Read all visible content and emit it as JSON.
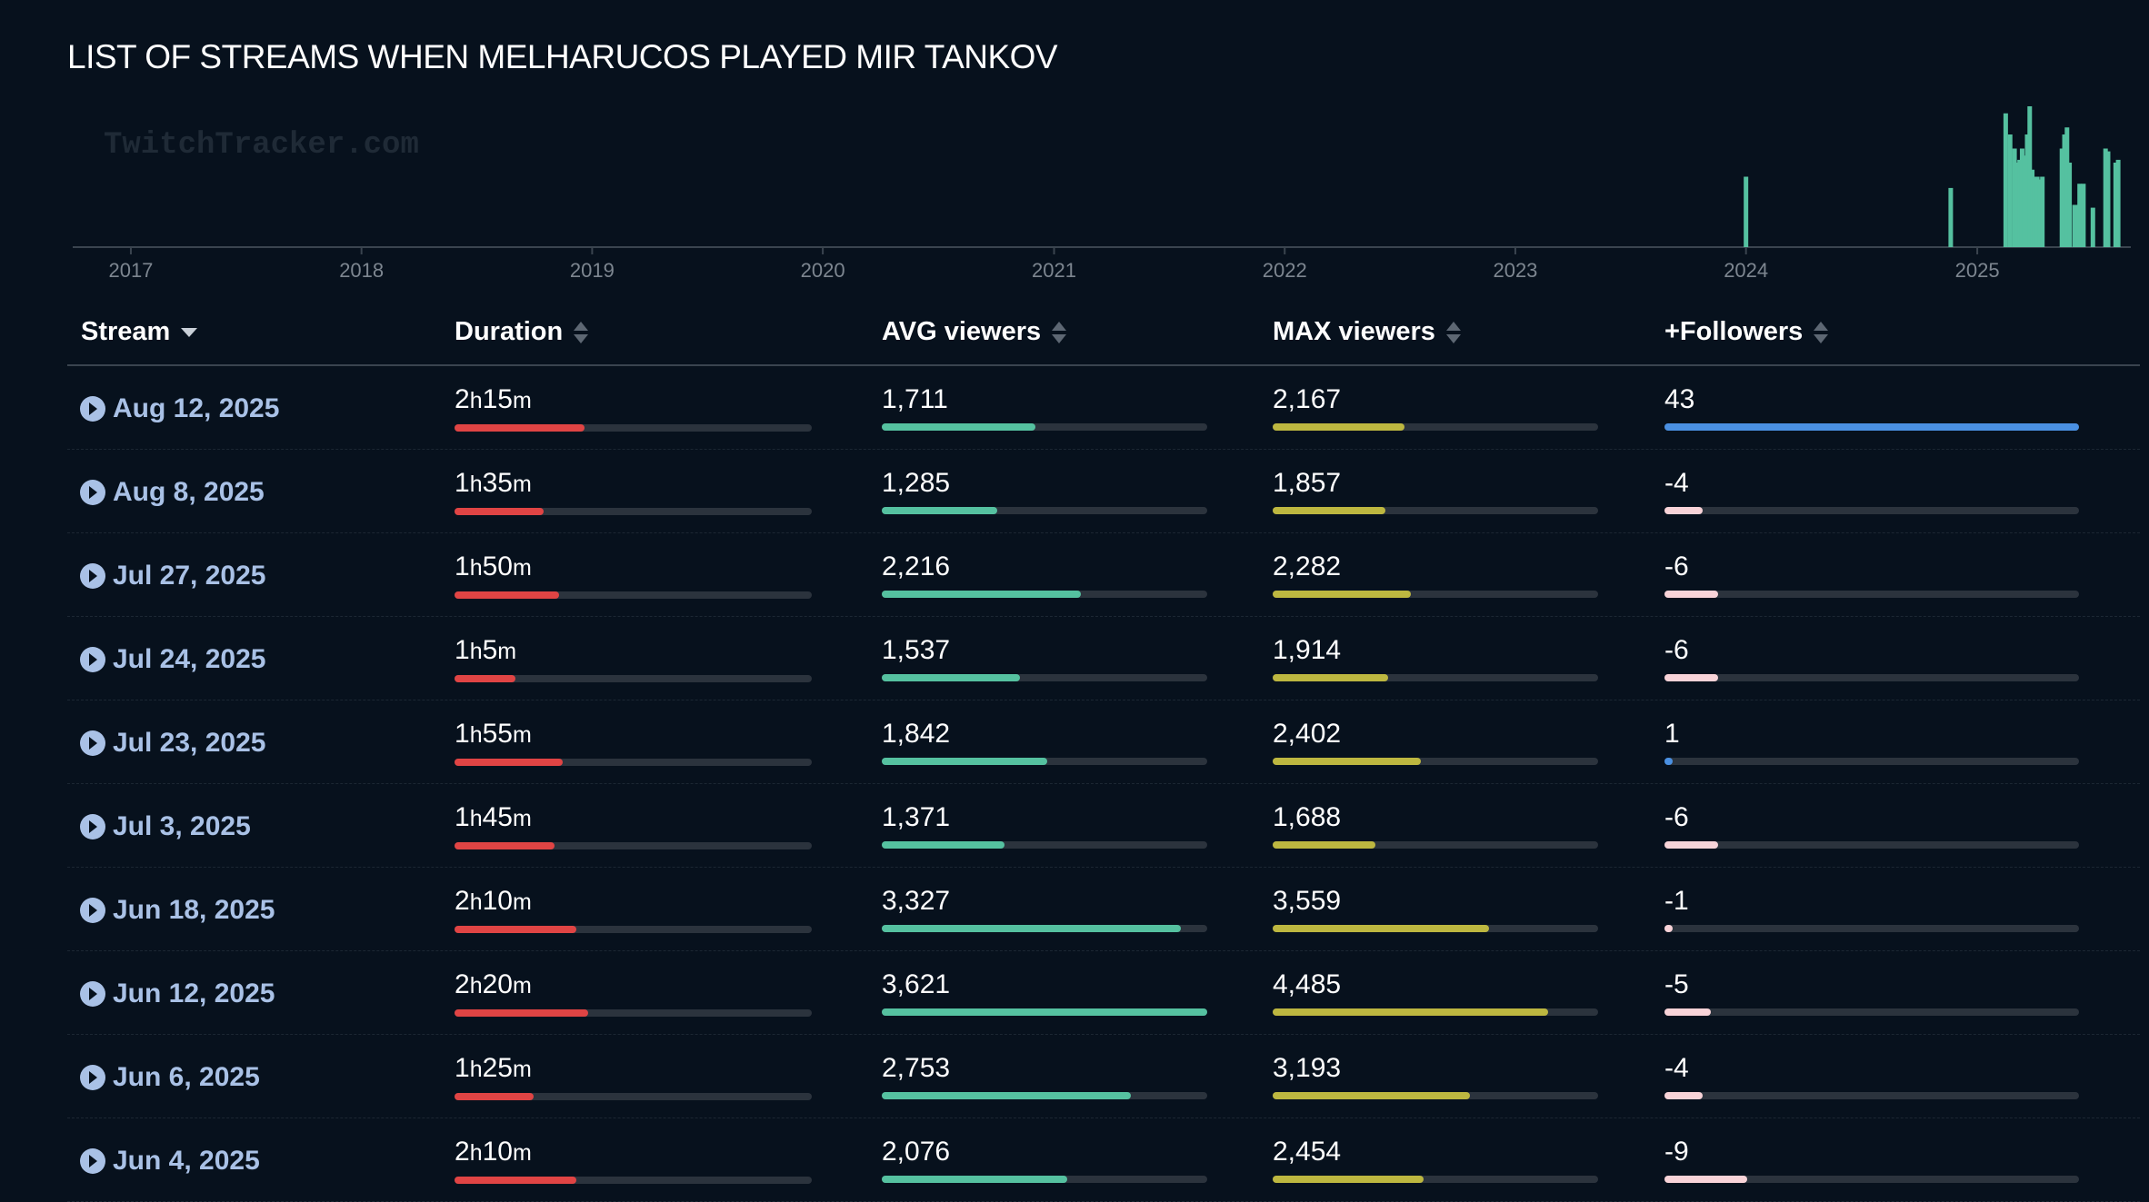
{
  "page": {
    "title": "LIST OF STREAMS WHEN MELHARUCOS PLAYED MIR TANKOV"
  },
  "timeline": {
    "watermark": "TwitchTracker.com",
    "years": [
      "2017",
      "2018",
      "2019",
      "2020",
      "2021",
      "2022",
      "2023",
      "2024",
      "2025"
    ],
    "bar_color": "#55c1a0",
    "axis_color": "#3a444f"
  },
  "chart_data": {
    "type": "bar",
    "xlabel": "",
    "ylabel": "",
    "x_axis_range": [
      "2016-10",
      "2025-09"
    ],
    "tick_labels": [
      "2017",
      "2018",
      "2019",
      "2020",
      "2021",
      "2022",
      "2023",
      "2024",
      "2025"
    ],
    "grid": false,
    "series": [
      {
        "x": [
          "2024-01-01",
          "2024-11-20",
          "2025-02-15",
          "2025-02-22",
          "2025-03-01",
          "2025-03-05",
          "2025-03-09",
          "2025-03-13",
          "2025-03-17",
          "2025-03-21",
          "2025-03-25",
          "2025-03-29",
          "2025-04-02",
          "2025-04-06",
          "2025-04-10",
          "2025-04-14",
          "2025-05-15",
          "2025-05-19",
          "2025-05-23",
          "2025-05-27",
          "2025-06-04",
          "2025-06-06",
          "2025-06-12",
          "2025-06-18",
          "2025-07-03",
          "2025-07-23",
          "2025-07-24",
          "2025-07-27",
          "2025-08-08",
          "2025-08-12"
        ],
        "values": [
          50,
          42,
          95,
          80,
          70,
          60,
          62,
          70,
          65,
          80,
          100,
          55,
          50,
          50,
          48,
          50,
          70,
          80,
          85,
          60,
          30,
          30,
          45,
          45,
          28,
          70,
          65,
          68,
          60,
          62
        ]
      }
    ]
  },
  "table": {
    "headers": {
      "stream": "Stream",
      "duration": "Duration",
      "avg": "AVG viewers",
      "max": "MAX viewers",
      "followers": "+Followers"
    },
    "colors": {
      "duration": "#e04444",
      "avg": "#55c1a0",
      "max": "#bdb740",
      "followers_positive": "#4a90e2",
      "followers_negative": "#f8d3d8",
      "track": "#2b333d",
      "link": "#a9c1e6"
    },
    "rows": [
      {
        "date": "Aug 12, 2025",
        "dur_h": "2",
        "dur_m": "15",
        "dur_frac": 0.364,
        "avg": "1,711",
        "avg_frac": 0.472,
        "max": "2,167",
        "max_frac": 0.405,
        "followers": "43",
        "fol_frac": 1.0,
        "fol_pos": true
      },
      {
        "date": "Aug 8, 2025",
        "dur_h": "1",
        "dur_m": "35",
        "dur_frac": 0.25,
        "avg": "1,285",
        "avg_frac": 0.355,
        "max": "1,857",
        "max_frac": 0.346,
        "followers": "-4",
        "fol_frac": 0.093,
        "fol_pos": false
      },
      {
        "date": "Jul 27, 2025",
        "dur_h": "1",
        "dur_m": "50",
        "dur_frac": 0.292,
        "avg": "2,216",
        "avg_frac": 0.612,
        "max": "2,282",
        "max_frac": 0.425,
        "followers": "-6",
        "fol_frac": 0.13,
        "fol_pos": false
      },
      {
        "date": "Jul 24, 2025",
        "dur_h": "1",
        "dur_m": "5",
        "dur_frac": 0.17,
        "avg": "1,537",
        "avg_frac": 0.424,
        "max": "1,914",
        "max_frac": 0.356,
        "followers": "-6",
        "fol_frac": 0.13,
        "fol_pos": false
      },
      {
        "date": "Jul 23, 2025",
        "dur_h": "1",
        "dur_m": "55",
        "dur_frac": 0.302,
        "avg": "1,842",
        "avg_frac": 0.508,
        "max": "2,402",
        "max_frac": 0.455,
        "followers": "1",
        "fol_frac": 0.02,
        "fol_pos": true
      },
      {
        "date": "Jul 3, 2025",
        "dur_h": "1",
        "dur_m": "45",
        "dur_frac": 0.281,
        "avg": "1,371",
        "avg_frac": 0.378,
        "max": "1,688",
        "max_frac": 0.315,
        "followers": "-6",
        "fol_frac": 0.13,
        "fol_pos": false
      },
      {
        "date": "Jun 18, 2025",
        "dur_h": "2",
        "dur_m": "10",
        "dur_frac": 0.342,
        "avg": "3,327",
        "avg_frac": 0.919,
        "max": "3,559",
        "max_frac": 0.665,
        "followers": "-1",
        "fol_frac": 0.02,
        "fol_pos": false
      },
      {
        "date": "Jun 12, 2025",
        "dur_h": "2",
        "dur_m": "20",
        "dur_frac": 0.374,
        "avg": "3,621",
        "avg_frac": 1.0,
        "max": "4,485",
        "max_frac": 0.845,
        "followers": "-5",
        "fol_frac": 0.111,
        "fol_pos": false
      },
      {
        "date": "Jun 6, 2025",
        "dur_h": "1",
        "dur_m": "25",
        "dur_frac": 0.221,
        "avg": "2,753",
        "avg_frac": 0.766,
        "max": "3,193",
        "max_frac": 0.605,
        "followers": "-4",
        "fol_frac": 0.093,
        "fol_pos": false
      },
      {
        "date": "Jun 4, 2025",
        "dur_h": "2",
        "dur_m": "10",
        "dur_frac": 0.342,
        "avg": "2,076",
        "avg_frac": 0.571,
        "max": "2,454",
        "max_frac": 0.465,
        "followers": "-9",
        "fol_frac": 0.2,
        "fol_pos": false
      }
    ]
  }
}
